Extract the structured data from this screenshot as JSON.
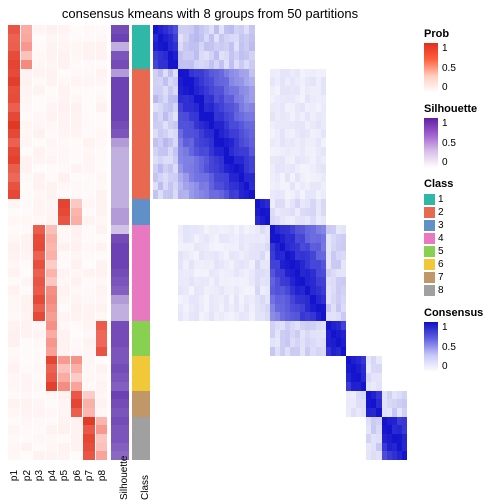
{
  "title": "consensus kmeans with 8 groups from 50 partitions",
  "prob_col_labels": [
    "p1",
    "p2",
    "p3",
    "p4",
    "p5",
    "p6",
    "p7",
    "p8"
  ],
  "sil_label": "Silhouette",
  "class_label": "Class",
  "legends": {
    "prob": {
      "title": "Prob",
      "ticks": [
        "1",
        "0.5",
        "0"
      ],
      "gradient": [
        "#ffffff",
        "#e03020"
      ]
    },
    "sil": {
      "title": "Silhouette",
      "ticks": [
        "1",
        "0.5",
        "0"
      ],
      "gradient": [
        "#ffffff",
        "#6020a0"
      ]
    },
    "class": {
      "title": "Class",
      "items": [
        {
          "label": "1",
          "color": "#2fb8a8"
        },
        {
          "label": "2",
          "color": "#e86850"
        },
        {
          "label": "3",
          "color": "#6090c8"
        },
        {
          "label": "4",
          "color": "#e878c0"
        },
        {
          "label": "5",
          "color": "#88d050"
        },
        {
          "label": "6",
          "color": "#f0c838"
        },
        {
          "label": "7",
          "color": "#c09868"
        },
        {
          "label": "8",
          "color": "#a0a0a0"
        }
      ]
    },
    "consensus": {
      "title": "Consensus",
      "ticks": [
        "1",
        "0.5",
        "0"
      ],
      "gradient": [
        "#ffffff",
        "#1010c0"
      ]
    }
  },
  "nrows": 50,
  "class_assignment": [
    0,
    0,
    0,
    0,
    0,
    1,
    1,
    1,
    1,
    1,
    1,
    1,
    1,
    1,
    1,
    1,
    1,
    1,
    1,
    1,
    2,
    2,
    2,
    3,
    3,
    3,
    3,
    3,
    3,
    3,
    3,
    3,
    3,
    3,
    4,
    4,
    4,
    4,
    5,
    5,
    5,
    5,
    6,
    6,
    6,
    7,
    7,
    7,
    7,
    7
  ],
  "class_block_sizes": [
    5,
    15,
    3,
    11,
    4,
    4,
    3,
    5
  ],
  "prob_pattern": {
    "high_cols_by_class": {
      "0": [
        0,
        1
      ],
      "1": [
        0
      ],
      "2": [
        4,
        5
      ],
      "3": [
        2,
        3
      ],
      "4": [
        7,
        3
      ],
      "5": [
        3,
        4,
        5
      ],
      "6": [
        5,
        6
      ],
      "7": [
        6,
        7
      ]
    }
  },
  "sil_values_approx": [
    0.9,
    0.95,
    0.4,
    0.85,
    0.9,
    0.5,
    0.95,
    0.95,
    0.95,
    0.95,
    0.95,
    0.9,
    0.85,
    0.5,
    0.4,
    0.4,
    0.4,
    0.4,
    0.4,
    0.4,
    0.4,
    0.5,
    0.5,
    0.3,
    0.9,
    0.95,
    0.95,
    0.95,
    0.9,
    0.85,
    0.8,
    0.5,
    0.4,
    0.4,
    0.9,
    0.9,
    0.9,
    0.85,
    0.85,
    0.9,
    0.85,
    0.8,
    0.95,
    0.9,
    0.85,
    0.9,
    0.85,
    0.85,
    0.8,
    0.75
  ],
  "consensus_off_diag_blocks": [
    {
      "r": 1,
      "c": 0,
      "v": 0.25
    },
    {
      "r": 0,
      "c": 1,
      "v": 0.25
    },
    {
      "r": 3,
      "c": 2,
      "v": 0.15
    },
    {
      "r": 2,
      "c": 3,
      "v": 0.15
    },
    {
      "r": 4,
      "c": 3,
      "v": 0.2
    },
    {
      "r": 3,
      "c": 4,
      "v": 0.2
    },
    {
      "r": 6,
      "c": 5,
      "v": 0.15
    },
    {
      "r": 5,
      "c": 6,
      "v": 0.15
    },
    {
      "r": 7,
      "c": 6,
      "v": 0.2
    },
    {
      "r": 6,
      "c": 7,
      "v": 0.2
    },
    {
      "r": 1,
      "c": 3,
      "v": 0.1
    },
    {
      "r": 3,
      "c": 1,
      "v": 0.1
    }
  ],
  "style": {
    "title_fontsize": 13,
    "label_fontsize": 10,
    "background": "#ffffff"
  }
}
